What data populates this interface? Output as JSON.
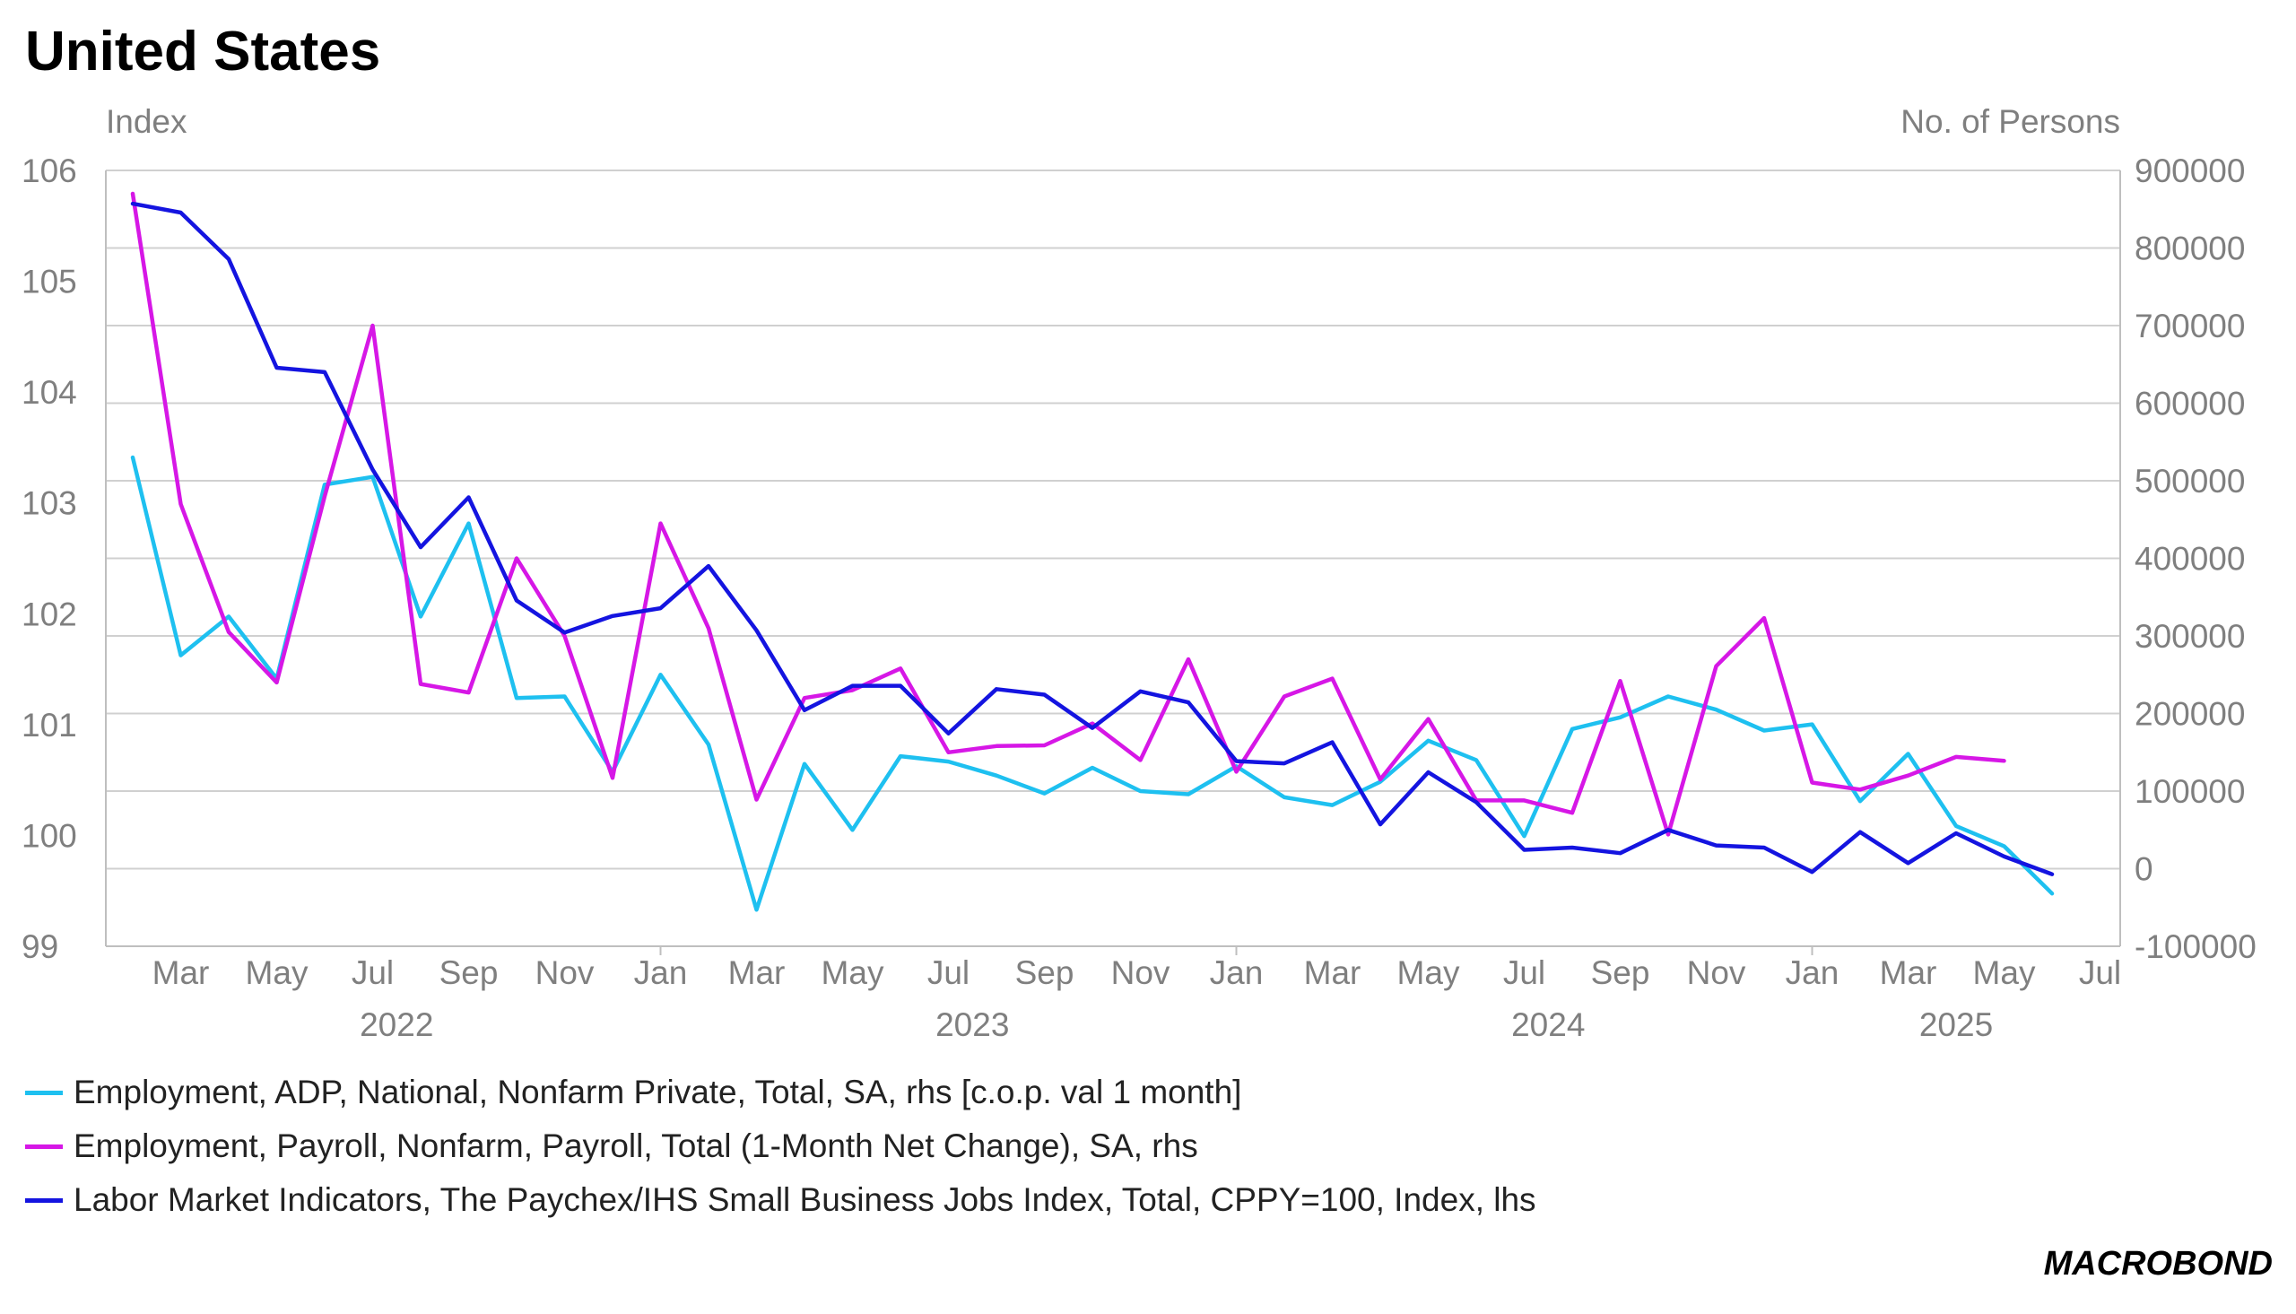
{
  "title": "United States",
  "brand": {
    "logo_text": "MACROBOND"
  },
  "chart_data": {
    "type": "line",
    "title": "United States",
    "left_axis": {
      "label": "Index",
      "ylim": [
        99,
        106
      ],
      "ticks": [
        99,
        100,
        101,
        102,
        103,
        104,
        105,
        106
      ]
    },
    "right_axis": {
      "label": "No. of Persons",
      "ylim": [
        -100000,
        900000
      ],
      "ticks": [
        -100000,
        0,
        100000,
        200000,
        300000,
        400000,
        500000,
        600000,
        700000,
        800000,
        900000
      ]
    },
    "x_axis": {
      "months": [
        "Mar",
        "May",
        "Jul",
        "Sep",
        "Nov",
        "Jan",
        "Mar",
        "May",
        "Jul",
        "Sep",
        "Nov",
        "Jan",
        "Mar",
        "May",
        "Jul",
        "Sep",
        "Nov",
        "Jan",
        "Mar",
        "May",
        "Jul"
      ],
      "years": [
        "2022",
        "2023",
        "2024",
        "2025"
      ]
    },
    "grid": true,
    "legend_position": "bottom",
    "series": [
      {
        "name": "Employment, ADP, National, Nonfarm Private, Total, SA, rhs [c.o.p. val 1 month]",
        "axis": "right",
        "color": "#1ec0f0",
        "start": "2022-02",
        "values": [
          530000,
          275000,
          325000,
          245000,
          495000,
          505000,
          325000,
          445000,
          220000,
          222000,
          125000,
          250000,
          160000,
          -53000,
          135000,
          50000,
          145000,
          138000,
          120000,
          97000,
          130000,
          100000,
          96000,
          132000,
          92000,
          82000,
          112000,
          165000,
          140000,
          42000,
          180000,
          195000,
          222000,
          205000,
          178000,
          186000,
          87000,
          148000,
          55000,
          29000,
          -32000
        ]
      },
      {
        "name": "Employment, Payroll, Nonfarm, Payroll, Total (1-Month Net Change), SA, rhs",
        "axis": "right",
        "color": "#d617e6",
        "start": "2022-02",
        "values": [
          870000,
          470000,
          305000,
          240000,
          480000,
          700000,
          238000,
          227000,
          400000,
          300000,
          117000,
          445000,
          310000,
          89000,
          220000,
          230000,
          258000,
          150000,
          158000,
          159000,
          187000,
          140000,
          270000,
          125000,
          222000,
          245000,
          115000,
          193000,
          88000,
          88000,
          72000,
          242000,
          44000,
          261000,
          323000,
          111000,
          102000,
          120000,
          144000,
          139000
        ]
      },
      {
        "name": "Labor Market Indicators, The Paychex/IHS Small Business Jobs Index, Total, CPPY=100, Index, lhs",
        "axis": "left",
        "color": "#1414e0",
        "start": "2022-02",
        "values": [
          105.7,
          105.62,
          105.2,
          104.22,
          104.18,
          103.3,
          102.6,
          103.05,
          102.12,
          101.83,
          101.98,
          102.05,
          102.43,
          101.85,
          101.13,
          101.35,
          101.35,
          100.92,
          101.32,
          101.27,
          100.97,
          101.3,
          101.2,
          100.67,
          100.65,
          100.84,
          100.1,
          100.57,
          100.3,
          99.87,
          99.89,
          99.84,
          100.05,
          99.91,
          99.89,
          99.67,
          100.03,
          99.75,
          100.02,
          99.81,
          99.65
        ]
      }
    ]
  }
}
